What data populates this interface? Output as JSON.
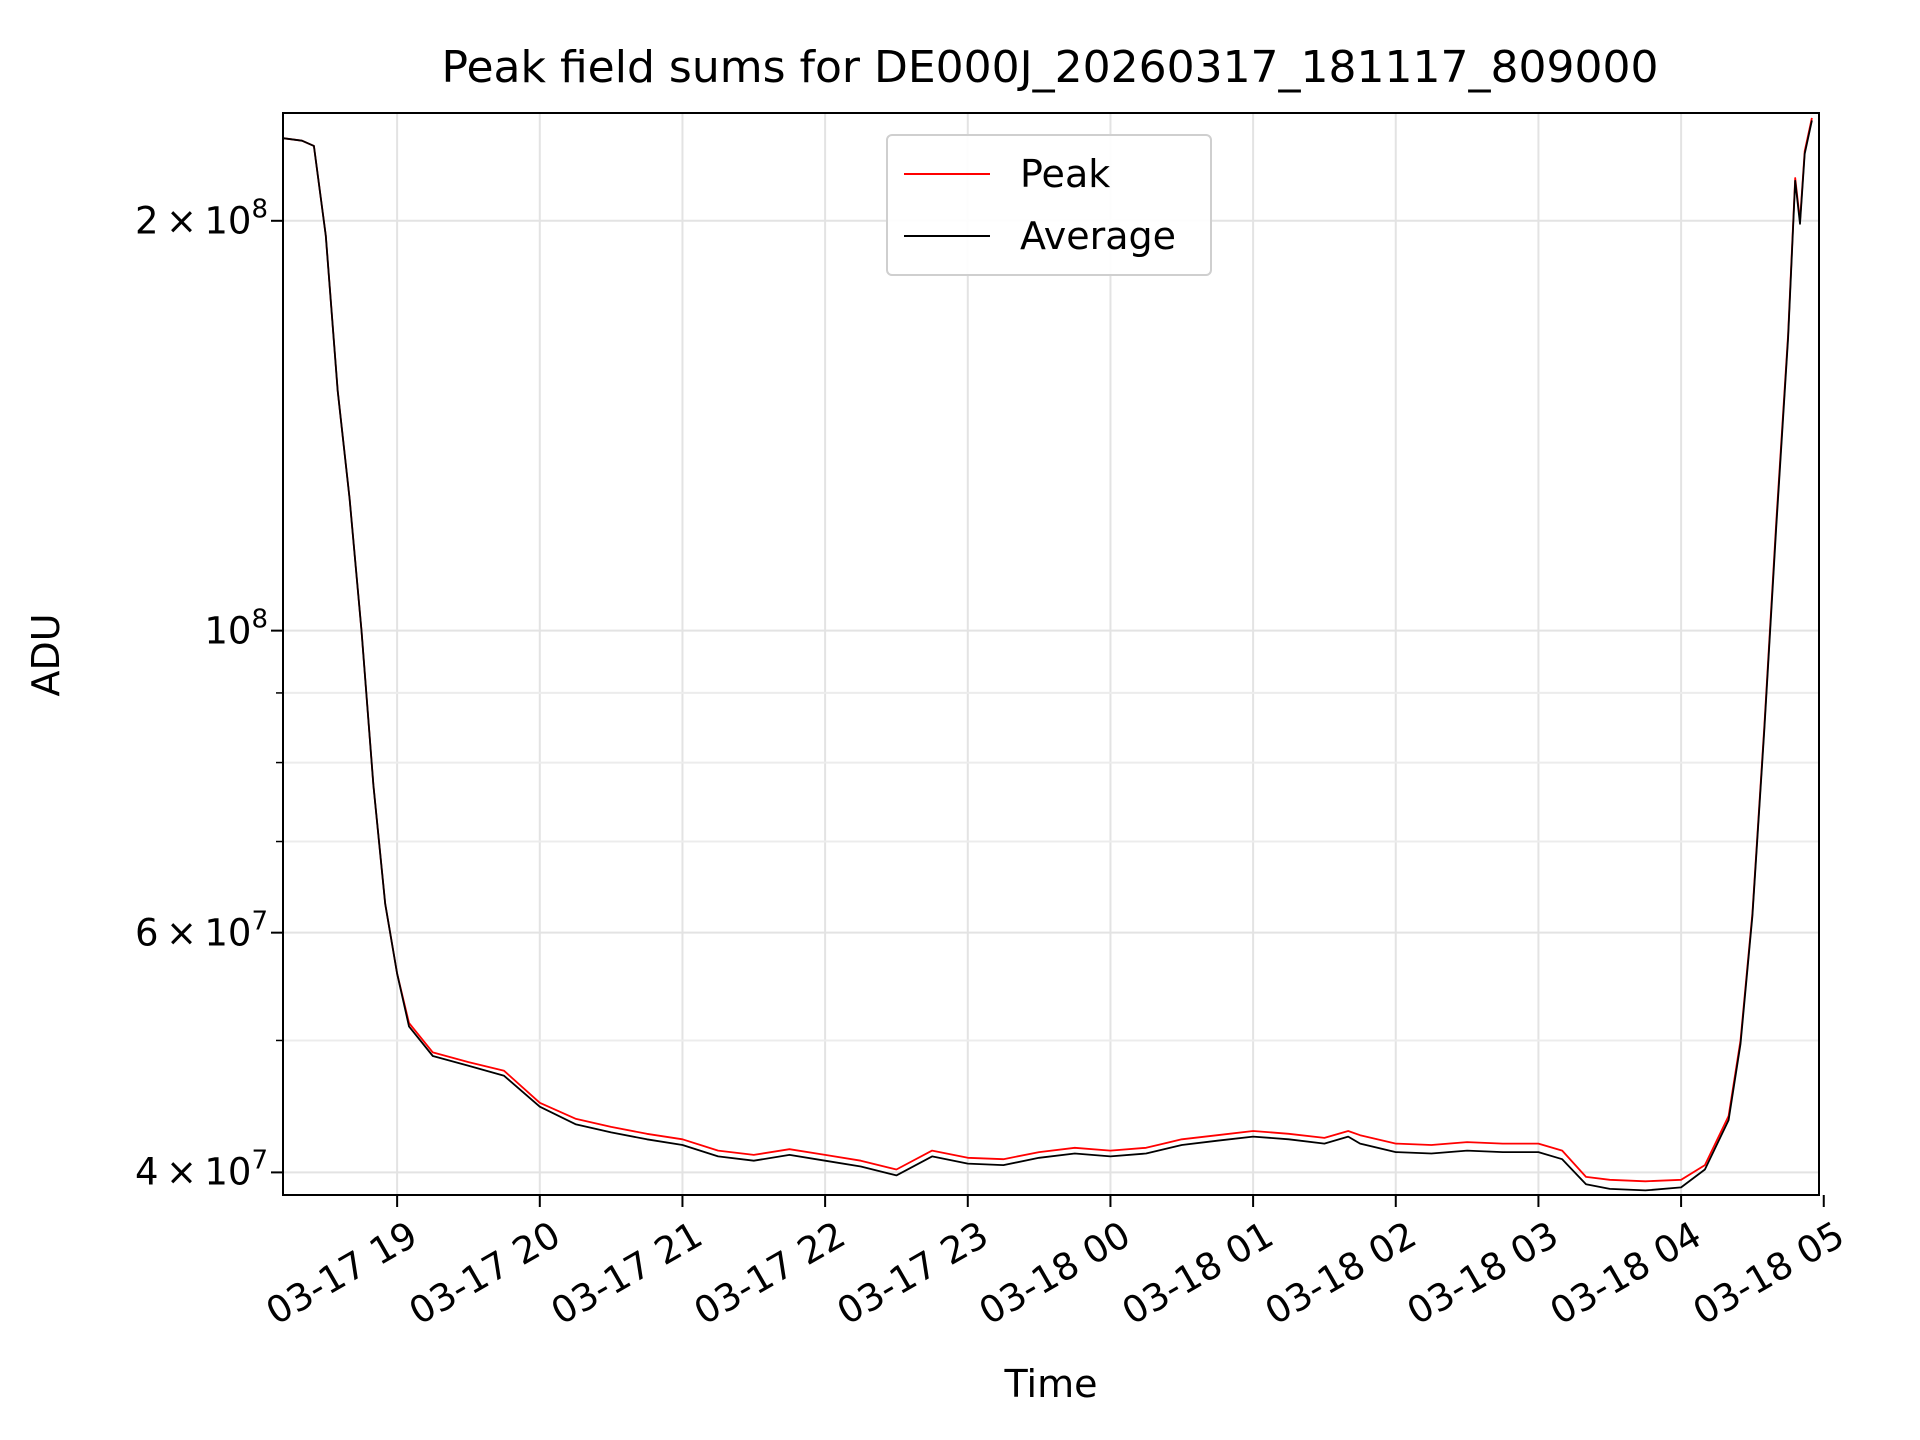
{
  "chart_data": {
    "type": "line",
    "title": "Peak field sums for DE000J_20260317_181117_809000",
    "xlabel": "Time",
    "ylabel": "ADU",
    "yscale": "log",
    "ylim": [
      38500000,
      240000000
    ],
    "xlim": [
      "2026-03-17T18:12",
      "2026-03-18T04:58"
    ],
    "grid": true,
    "legend_position": "top-center",
    "x_tick_labels": [
      "03-17 19",
      "03-17 20",
      "03-17 21",
      "03-17 22",
      "03-17 23",
      "03-18 00",
      "03-18 01",
      "03-18 02",
      "03-18 03",
      "03-18 04",
      "03-18 05"
    ],
    "x_tick_values": [
      "2026-03-17T19:00",
      "2026-03-17T20:00",
      "2026-03-17T21:00",
      "2026-03-17T22:00",
      "2026-03-17T23:00",
      "2026-03-18T00:00",
      "2026-03-18T01:00",
      "2026-03-18T02:00",
      "2026-03-18T03:00",
      "2026-03-18T04:00",
      "2026-03-18T05:00"
    ],
    "y_tick_labels": [
      {
        "value": 200000000,
        "mantissa": "2",
        "exponent": "8"
      },
      {
        "value": 100000000,
        "mantissa": "",
        "exponent": "8"
      },
      {
        "value": 60000000,
        "mantissa": "6",
        "exponent": "7"
      },
      {
        "value": 40000000,
        "mantissa": "4",
        "exponent": "7"
      }
    ],
    "y_minor_ticks": [
      50000000,
      70000000,
      80000000,
      90000000
    ],
    "series": [
      {
        "name": "Peak",
        "color": "#ff0000",
        "points": [
          [
            "2026-03-17T18:12",
            230000000
          ],
          [
            "2026-03-17T18:20",
            229000000
          ],
          [
            "2026-03-17T18:25",
            227000000
          ],
          [
            "2026-03-17T18:30",
            195000000
          ],
          [
            "2026-03-17T18:35",
            150000000
          ],
          [
            "2026-03-17T18:40",
            125000000
          ],
          [
            "2026-03-17T18:45",
            100000000
          ],
          [
            "2026-03-17T18:50",
            77000000
          ],
          [
            "2026-03-17T18:55",
            63000000
          ],
          [
            "2026-03-17T19:00",
            56000000
          ],
          [
            "2026-03-17T19:05",
            51500000
          ],
          [
            "2026-03-17T19:15",
            49000000
          ],
          [
            "2026-03-17T19:30",
            48200000
          ],
          [
            "2026-03-17T19:45",
            47500000
          ],
          [
            "2026-03-17T20:00",
            45000000
          ],
          [
            "2026-03-17T20:15",
            43800000
          ],
          [
            "2026-03-17T20:30",
            43200000
          ],
          [
            "2026-03-17T20:45",
            42700000
          ],
          [
            "2026-03-17T21:00",
            42300000
          ],
          [
            "2026-03-17T21:15",
            41500000
          ],
          [
            "2026-03-17T21:30",
            41200000
          ],
          [
            "2026-03-17T21:45",
            41600000
          ],
          [
            "2026-03-17T22:00",
            41200000
          ],
          [
            "2026-03-17T22:15",
            40800000
          ],
          [
            "2026-03-17T22:30",
            40200000
          ],
          [
            "2026-03-17T22:45",
            41500000
          ],
          [
            "2026-03-17T23:00",
            41000000
          ],
          [
            "2026-03-17T23:15",
            40900000
          ],
          [
            "2026-03-17T23:30",
            41400000
          ],
          [
            "2026-03-17T23:45",
            41700000
          ],
          [
            "2026-03-18T00:00",
            41500000
          ],
          [
            "2026-03-18T00:15",
            41700000
          ],
          [
            "2026-03-18T00:30",
            42300000
          ],
          [
            "2026-03-18T00:45",
            42600000
          ],
          [
            "2026-03-18T01:00",
            42900000
          ],
          [
            "2026-03-18T01:15",
            42700000
          ],
          [
            "2026-03-18T01:30",
            42400000
          ],
          [
            "2026-03-18T01:40",
            42900000
          ],
          [
            "2026-03-18T01:45",
            42600000
          ],
          [
            "2026-03-18T02:00",
            42000000
          ],
          [
            "2026-03-18T02:15",
            41900000
          ],
          [
            "2026-03-18T02:30",
            42100000
          ],
          [
            "2026-03-18T02:45",
            42000000
          ],
          [
            "2026-03-18T03:00",
            42000000
          ],
          [
            "2026-03-18T03:10",
            41500000
          ],
          [
            "2026-03-18T03:20",
            39700000
          ],
          [
            "2026-03-18T03:30",
            39500000
          ],
          [
            "2026-03-18T03:45",
            39400000
          ],
          [
            "2026-03-18T04:00",
            39500000
          ],
          [
            "2026-03-18T04:10",
            40500000
          ],
          [
            "2026-03-18T04:20",
            44000000
          ],
          [
            "2026-03-18T04:25",
            50000000
          ],
          [
            "2026-03-18T04:30",
            62000000
          ],
          [
            "2026-03-18T04:35",
            85000000
          ],
          [
            "2026-03-18T04:40",
            120000000
          ],
          [
            "2026-03-18T04:45",
            165000000
          ],
          [
            "2026-03-18T04:48",
            215000000
          ],
          [
            "2026-03-18T04:50",
            200000000
          ],
          [
            "2026-03-18T04:52",
            225000000
          ],
          [
            "2026-03-18T04:55",
            238000000
          ]
        ]
      },
      {
        "name": "Average",
        "color": "#000000",
        "points": [
          [
            "2026-03-17T18:12",
            230000000
          ],
          [
            "2026-03-17T18:20",
            229000000
          ],
          [
            "2026-03-17T18:25",
            227000000
          ],
          [
            "2026-03-17T18:30",
            195000000
          ],
          [
            "2026-03-17T18:35",
            150000000
          ],
          [
            "2026-03-17T18:40",
            125000000
          ],
          [
            "2026-03-17T18:45",
            100000000
          ],
          [
            "2026-03-17T18:50",
            77000000
          ],
          [
            "2026-03-17T18:55",
            63000000
          ],
          [
            "2026-03-17T19:00",
            56000000
          ],
          [
            "2026-03-17T19:05",
            51200000
          ],
          [
            "2026-03-17T19:15",
            48700000
          ],
          [
            "2026-03-17T19:30",
            47900000
          ],
          [
            "2026-03-17T19:45",
            47100000
          ],
          [
            "2026-03-17T20:00",
            44700000
          ],
          [
            "2026-03-17T20:15",
            43400000
          ],
          [
            "2026-03-17T20:30",
            42800000
          ],
          [
            "2026-03-17T20:45",
            42300000
          ],
          [
            "2026-03-17T21:00",
            41900000
          ],
          [
            "2026-03-17T21:15",
            41100000
          ],
          [
            "2026-03-17T21:30",
            40800000
          ],
          [
            "2026-03-17T21:45",
            41200000
          ],
          [
            "2026-03-17T22:00",
            40800000
          ],
          [
            "2026-03-17T22:15",
            40400000
          ],
          [
            "2026-03-17T22:30",
            39800000
          ],
          [
            "2026-03-17T22:45",
            41100000
          ],
          [
            "2026-03-17T23:00",
            40600000
          ],
          [
            "2026-03-17T23:15",
            40500000
          ],
          [
            "2026-03-17T23:30",
            41000000
          ],
          [
            "2026-03-17T23:45",
            41300000
          ],
          [
            "2026-03-18T00:00",
            41100000
          ],
          [
            "2026-03-18T00:15",
            41300000
          ],
          [
            "2026-03-18T00:30",
            41900000
          ],
          [
            "2026-03-18T00:45",
            42200000
          ],
          [
            "2026-03-18T01:00",
            42500000
          ],
          [
            "2026-03-18T01:15",
            42300000
          ],
          [
            "2026-03-18T01:30",
            42000000
          ],
          [
            "2026-03-18T01:40",
            42500000
          ],
          [
            "2026-03-18T01:45",
            42000000
          ],
          [
            "2026-03-18T02:00",
            41400000
          ],
          [
            "2026-03-18T02:15",
            41300000
          ],
          [
            "2026-03-18T02:30",
            41500000
          ],
          [
            "2026-03-18T02:45",
            41400000
          ],
          [
            "2026-03-18T03:00",
            41400000
          ],
          [
            "2026-03-18T03:10",
            40900000
          ],
          [
            "2026-03-18T03:20",
            39200000
          ],
          [
            "2026-03-18T03:30",
            38900000
          ],
          [
            "2026-03-18T03:45",
            38800000
          ],
          [
            "2026-03-18T04:00",
            39000000
          ],
          [
            "2026-03-18T04:10",
            40200000
          ],
          [
            "2026-03-18T04:20",
            43700000
          ],
          [
            "2026-03-18T04:25",
            49700000
          ],
          [
            "2026-03-18T04:30",
            61700000
          ],
          [
            "2026-03-18T04:35",
            84500000
          ],
          [
            "2026-03-18T04:40",
            119000000
          ],
          [
            "2026-03-18T04:45",
            164000000
          ],
          [
            "2026-03-18T04:48",
            214000000
          ],
          [
            "2026-03-18T04:50",
            199000000
          ],
          [
            "2026-03-18T04:52",
            224000000
          ],
          [
            "2026-03-18T04:55",
            237000000
          ]
        ]
      }
    ]
  }
}
